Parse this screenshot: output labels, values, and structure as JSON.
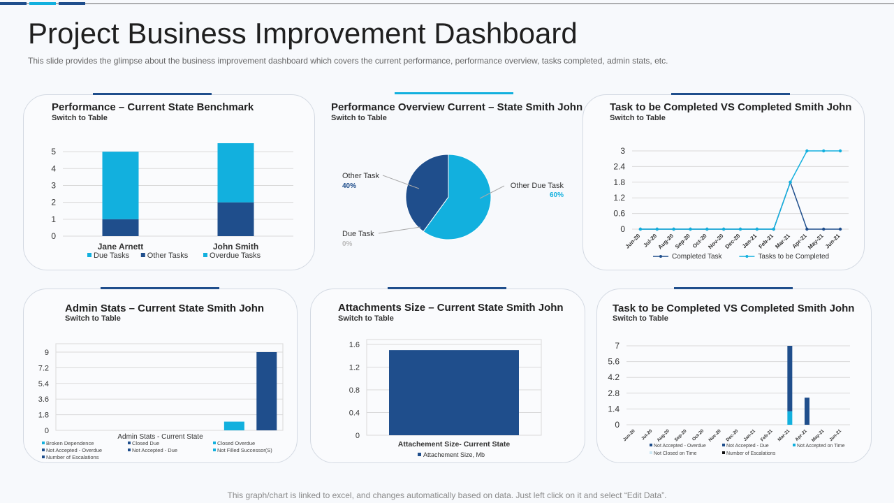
{
  "page": {
    "title": "Project Business Improvement Dashboard",
    "subtitle": "This slide provides the glimpse about the business improvement dashboard which covers the current performance, performance overview, tasks completed, admin stats, etc.",
    "footer": "This graph/chart is linked to excel, and changes automatically based on data. Just left click on it and select “Edit Data”.",
    "colors": {
      "dark": "#1f4e8c",
      "light": "#12b0de",
      "grid": "#d9d9d9"
    }
  },
  "cards": [
    {
      "title": "Performance – Current State Benchmark",
      "switch_label": "Switch to Table"
    },
    {
      "title": "Performance Overview Current – State Smith John",
      "switch_label": "Switch to Table"
    },
    {
      "title": "Task to be Completed VS Completed Smith John",
      "switch_label": "Switch to Table"
    },
    {
      "title": "Admin Stats – Current State Smith John",
      "switch_label": "Switch to Table"
    },
    {
      "title": "Attachments Size – Current State Smith John",
      "switch_label": "Switch to Table"
    },
    {
      "title": "Task to be Completed VS Completed Smith John",
      "switch_label": "Switch to Table"
    }
  ],
  "chart_data": [
    {
      "type": "bar",
      "stacked": true,
      "categories": [
        "Jane Arnett",
        "John  Smith"
      ],
      "yticks": [
        "0",
        "1",
        "2",
        "3",
        "4",
        "5"
      ],
      "ylim": [
        0,
        5.5
      ],
      "series": [
        {
          "name": "Due Tasks",
          "values": [
            4,
            3.5
          ],
          "color": "#12b0de"
        },
        {
          "name": "Other Tasks",
          "values": [
            1,
            2
          ],
          "color": "#1f4e8c"
        },
        {
          "name": "Overdue Tasks",
          "values": [
            0,
            0
          ],
          "color": "#12b0de"
        }
      ],
      "grid": true,
      "legend": "bottom"
    },
    {
      "type": "pie",
      "slices": [
        {
          "name": "Other Task",
          "label": "40%",
          "value": 40,
          "color": "#1f4e8c"
        },
        {
          "name": "Other Due Task",
          "label": "60%",
          "value": 60,
          "color": "#12b0de"
        },
        {
          "name": "Due Task",
          "label": "0%",
          "value": 0,
          "color": "#bbbbbb"
        }
      ]
    },
    {
      "type": "line",
      "x": [
        "Jun-20",
        "Jul-20",
        "Aug-20",
        "Sep-20",
        "Oct-20",
        "Nov-20",
        "Dec-20",
        "Jan-21",
        "Feb-21",
        "Mar-21",
        "Apr-21",
        "May-21",
        "Jun-21"
      ],
      "yticks": [
        "0",
        "0.6",
        "1.2",
        "1.8",
        "2.4",
        "3"
      ],
      "ylim": [
        0,
        3
      ],
      "series": [
        {
          "name": "Completed Task",
          "values": [
            0,
            0,
            0,
            0,
            0,
            0,
            0,
            0,
            0,
            1.8,
            0,
            0,
            0
          ],
          "color": "#1f4e8c"
        },
        {
          "name": "Tasks to be Completed",
          "values": [
            0,
            0,
            0,
            0,
            0,
            0,
            0,
            0,
            0,
            1.8,
            3,
            3,
            3
          ],
          "color": "#12b0de"
        }
      ],
      "grid": true,
      "legend": "bottom"
    },
    {
      "type": "bar",
      "xlabel": "Admin Stats - Current State",
      "yticks": [
        "0",
        "1.8",
        "3.6",
        "5.4",
        "7.2",
        "9"
      ],
      "ylim": [
        0,
        9
      ],
      "series": [
        {
          "name": "Broken Dependence",
          "value": 0,
          "color": "#12b0de"
        },
        {
          "name": "Closed Due",
          "value": 0,
          "color": "#1f4e8c"
        },
        {
          "name": "Closed Overdue",
          "value": 0,
          "color": "#12b0de"
        },
        {
          "name": "Not Accepted - Overdue",
          "value": 0,
          "color": "#1f4e8c"
        },
        {
          "name": "Not Accepted - Due",
          "value": 0,
          "color": "#1f4e8c"
        },
        {
          "name": "Not Filled Successor(S)",
          "value": 1,
          "color": "#12b0de"
        },
        {
          "name": "Number of Escalations",
          "value": 9,
          "color": "#1f4e8c"
        }
      ],
      "grid": true,
      "legend": "bottom"
    },
    {
      "type": "bar",
      "categories": [
        "Attachement Size- Current State"
      ],
      "yticks": [
        "0",
        "0.4",
        "0.8",
        "1.2",
        "1.6"
      ],
      "ylim": [
        0,
        1.6
      ],
      "series": [
        {
          "name": "Attachement Size, Mb",
          "values": [
            1.5
          ],
          "color": "#1f4e8c"
        }
      ],
      "grid": true,
      "legend": "bottom"
    },
    {
      "type": "bar",
      "stacked": true,
      "categories": [
        "Jun-20",
        "Jul-20",
        "Aug-20",
        "Sep-20",
        "Oct-20",
        "Nov-20",
        "Dec-20",
        "Jan-21",
        "Feb-21",
        "Mar-21",
        "Apr-21",
        "May-21",
        "Jun-21"
      ],
      "yticks": [
        "0",
        "1.4",
        "2.8",
        "4.2",
        "5.6",
        "7"
      ],
      "ylim": [
        0,
        7
      ],
      "series": [
        {
          "name": "Not Accepted - Overdue",
          "values": [
            0,
            0,
            0,
            0,
            0,
            0,
            0,
            0,
            0,
            5.8,
            2.4,
            0,
            0
          ],
          "color": "#1f4e8c"
        },
        {
          "name": "Not Accepted - Due",
          "values": [
            0,
            0,
            0,
            0,
            0,
            0,
            0,
            0,
            0,
            0,
            0,
            0,
            0
          ],
          "color": "#1f4e8c"
        },
        {
          "name": "Not Accepted on Time",
          "values": [
            0,
            0,
            0,
            0,
            0,
            0,
            0,
            0,
            0,
            1.2,
            0,
            0,
            0
          ],
          "color": "#12b0de"
        },
        {
          "name": "Not Closed on Time",
          "values": [
            0,
            0,
            0,
            0,
            0,
            0,
            0,
            0,
            0,
            0,
            0,
            0,
            0
          ],
          "color": "#cfe9f5"
        },
        {
          "name": "Number of Escalations",
          "values": [
            0,
            0,
            0,
            0,
            0,
            0,
            0,
            0,
            0,
            0,
            0,
            0,
            0
          ],
          "color": "#111111"
        }
      ],
      "grid": true,
      "legend": "bottom"
    }
  ]
}
